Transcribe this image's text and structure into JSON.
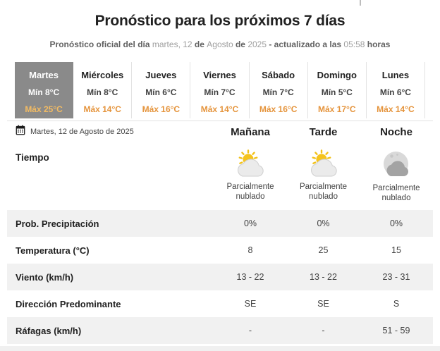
{
  "page": {
    "title": "Pronóstico para los próximos 7 días",
    "subtitle_parts": [
      {
        "text": "Pronóstico oficial del día ",
        "bold": true
      },
      {
        "text": "martes, 12 ",
        "bold": false
      },
      {
        "text": "de ",
        "bold": true
      },
      {
        "text": "Agosto ",
        "bold": false
      },
      {
        "text": "de ",
        "bold": true
      },
      {
        "text": "2025 ",
        "bold": false
      },
      {
        "text": "- actualizado a las ",
        "bold": true
      },
      {
        "text": "05:58 ",
        "bold": false
      },
      {
        "text": "horas",
        "bold": true
      }
    ]
  },
  "day_tabs": [
    {
      "name": "Martes",
      "min": "Mín 8°C",
      "max": "Máx 25°C",
      "selected": true
    },
    {
      "name": "Miércoles",
      "min": "Mín 8°C",
      "max": "Máx 14°C",
      "selected": false
    },
    {
      "name": "Jueves",
      "min": "Mín 6°C",
      "max": "Máx 16°C",
      "selected": false
    },
    {
      "name": "Viernes",
      "min": "Mín 7°C",
      "max": "Máx 14°C",
      "selected": false
    },
    {
      "name": "Sábado",
      "min": "Mín 7°C",
      "max": "Máx 16°C",
      "selected": false
    },
    {
      "name": "Domingo",
      "min": "Mín 5°C",
      "max": "Máx 17°C",
      "selected": false
    },
    {
      "name": "Lunes",
      "min": "Mín 6°C",
      "max": "Máx 14°C",
      "selected": false
    }
  ],
  "detail": {
    "date_label": "Martes, 12 de Agosto de 2025",
    "calendar_icon": "calendar-icon",
    "columns": [
      "Mañana",
      "Tarde",
      "Noche"
    ],
    "weather": {
      "label": "Tiempo",
      "cells": [
        {
          "icon": "sun-cloud-icon",
          "label": "Parcialmente nublado"
        },
        {
          "icon": "sun-cloud-icon",
          "label": "Parcialmente nublado"
        },
        {
          "icon": "moon-cloud-icon",
          "label": "Parcialmente nublado"
        }
      ]
    },
    "rows": [
      {
        "label": "Prob. Precipitación",
        "values": [
          "0%",
          "0%",
          "0%"
        ]
      },
      {
        "label": "Temperatura (°C)",
        "values": [
          "8",
          "25",
          "15"
        ]
      },
      {
        "label": "Viento (km/h)",
        "values": [
          "13 - 22",
          "13 - 22",
          "23 - 31"
        ]
      },
      {
        "label": "Dirección Predominante",
        "values": [
          "SE",
          "SE",
          "S"
        ]
      },
      {
        "label": "Ráfagas (km/h)",
        "values": [
          "-",
          "-",
          "51 - 59"
        ]
      }
    ]
  },
  "colors": {
    "accent_orange": "#e5943c",
    "selected_tab_bg": "#8a8a8a",
    "selected_max_orange": "#f2bb63",
    "zebra_row_bg": "#f1f1f1",
    "divider": "#e2e2e2",
    "subtitle_bold": "#616161",
    "subtitle_light": "#9e9e9e"
  }
}
